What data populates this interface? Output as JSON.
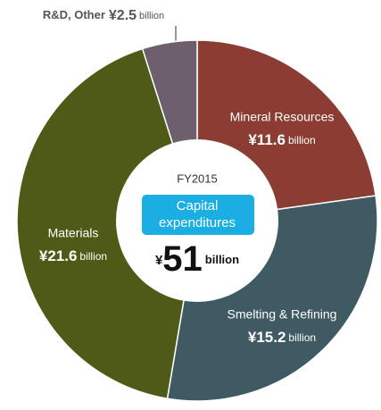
{
  "chart_data": {
    "type": "pie",
    "categories": [
      "Mineral Resources",
      "Smelting & Refining",
      "Materials",
      "R&D, Other"
    ],
    "values": [
      11.6,
      15.2,
      21.6,
      2.5
    ],
    "value_labels": [
      "¥11.6",
      "¥15.2",
      "¥21.6",
      "¥2.5"
    ],
    "unit": "billion",
    "colors": [
      "#8c3d33",
      "#3f5a63",
      "#4e5a15",
      "#6d5f6e"
    ],
    "center": {
      "year": "FY2015",
      "badge_lines": [
        "Capital",
        "expenditures"
      ],
      "currency": "¥",
      "total": 51
    }
  }
}
